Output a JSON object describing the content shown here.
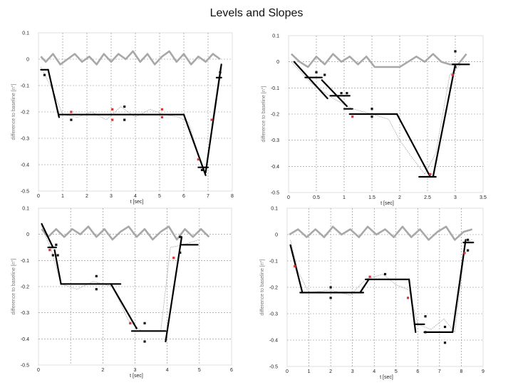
{
  "title": "Levels and Slopes",
  "colors": {
    "baseline": "#a8a8a8",
    "fit": "#000000",
    "signal": "#9a9a9a",
    "marker_red": "#d23a3a",
    "marker_black": "#111111",
    "grid": "#888888"
  },
  "chart_data": [
    {
      "type": "line",
      "title": "",
      "xlabel": "t [sec]",
      "ylabel": "difference to baseline [n°]",
      "xlim": [
        0,
        8
      ],
      "ylim": [
        -0.5,
        0.1
      ],
      "xticks": [
        "0",
        "1",
        "2",
        "3",
        "4",
        "5",
        "6",
        "7",
        "8"
      ],
      "yticks": [
        "0.1",
        "0",
        "-0.1",
        "-0.2",
        "-0.3",
        "-0.4",
        "-0.5"
      ],
      "baseline": [
        [
          0.1,
          0.01
        ],
        [
          0.3,
          -0.01
        ],
        [
          0.6,
          0.02
        ],
        [
          0.9,
          -0.02
        ],
        [
          1.2,
          0.0
        ],
        [
          1.5,
          0.02
        ],
        [
          1.8,
          -0.01
        ],
        [
          2.1,
          0.01
        ],
        [
          2.4,
          -0.02
        ],
        [
          2.7,
          0.02
        ],
        [
          3.0,
          -0.01
        ],
        [
          3.3,
          0.02
        ],
        [
          3.6,
          0.0
        ],
        [
          3.9,
          0.03
        ],
        [
          4.2,
          -0.01
        ],
        [
          4.5,
          0.02
        ],
        [
          4.8,
          -0.02
        ],
        [
          5.1,
          0.01
        ],
        [
          5.4,
          0.03
        ],
        [
          5.7,
          -0.01
        ],
        [
          6.0,
          0.02
        ],
        [
          6.3,
          -0.02
        ],
        [
          6.6,
          0.01
        ],
        [
          6.9,
          -0.01
        ],
        [
          7.2,
          0.02
        ],
        [
          7.5,
          0.0
        ]
      ],
      "fit": [
        [
          [
            0.1,
            -0.04
          ],
          [
            0.4,
            -0.04
          ]
        ],
        [
          [
            0.4,
            -0.04
          ],
          [
            0.85,
            -0.22
          ]
        ],
        [
          [
            0.85,
            -0.21
          ],
          [
            6.0,
            -0.21
          ]
        ],
        [
          [
            6.0,
            -0.21
          ],
          [
            6.9,
            -0.44
          ]
        ],
        [
          [
            6.6,
            -0.41
          ],
          [
            7.0,
            -0.41
          ]
        ],
        [
          [
            6.9,
            -0.43
          ],
          [
            7.55,
            -0.02
          ]
        ],
        [
          [
            7.35,
            -0.07
          ],
          [
            7.55,
            -0.07
          ]
        ]
      ],
      "signal": [
        [
          0.1,
          -0.03
        ],
        [
          0.6,
          -0.12
        ],
        [
          1.0,
          -0.21
        ],
        [
          1.6,
          -0.22
        ],
        [
          2.2,
          -0.2
        ],
        [
          2.8,
          -0.23
        ],
        [
          3.4,
          -0.18
        ],
        [
          4.0,
          -0.22
        ],
        [
          4.6,
          -0.19
        ],
        [
          5.2,
          -0.21
        ],
        [
          5.8,
          -0.22
        ],
        [
          6.2,
          -0.24
        ],
        [
          6.6,
          -0.36
        ],
        [
          6.9,
          -0.43
        ],
        [
          7.2,
          -0.22
        ],
        [
          7.5,
          -0.03
        ]
      ],
      "markers_red": [
        [
          1.35,
          -0.2
        ],
        [
          3.05,
          -0.19
        ],
        [
          3.05,
          -0.23
        ],
        [
          5.1,
          -0.19
        ],
        [
          5.1,
          -0.22
        ],
        [
          7.15,
          -0.23
        ],
        [
          6.6,
          -0.38
        ]
      ],
      "markers_black": [
        [
          0.25,
          -0.06
        ],
        [
          1.35,
          -0.23
        ],
        [
          3.55,
          -0.18
        ],
        [
          3.55,
          -0.23
        ],
        [
          7.5,
          -0.05
        ],
        [
          6.75,
          -0.42
        ]
      ]
    },
    {
      "type": "line",
      "title": "",
      "xlabel": "t [sec]",
      "ylabel": "difference to baseline [n°]",
      "xlim": [
        0,
        3.5
      ],
      "ylim": [
        -0.5,
        0.1
      ],
      "xticks": [
        "0",
        "0.5",
        "1",
        "1.5",
        "2",
        "2.5",
        "3",
        "3.5"
      ],
      "yticks": [
        "0.1",
        "0",
        "-0.1",
        "-0.2",
        "-0.3",
        "-0.4",
        "-0.5"
      ],
      "baseline": [
        [
          0.05,
          0.03
        ],
        [
          0.2,
          0.0
        ],
        [
          0.35,
          -0.02
        ],
        [
          0.5,
          0.02
        ],
        [
          0.65,
          -0.01
        ],
        [
          0.8,
          0.03
        ],
        [
          0.95,
          0.0
        ],
        [
          1.1,
          0.02
        ],
        [
          1.25,
          -0.01
        ],
        [
          1.4,
          0.02
        ],
        [
          1.55,
          -0.02
        ],
        [
          1.7,
          -0.02
        ],
        [
          1.85,
          -0.02
        ],
        [
          2.0,
          -0.02
        ],
        [
          2.15,
          0.0
        ],
        [
          2.3,
          0.02
        ],
        [
          2.45,
          0.0
        ],
        [
          2.6,
          0.03
        ],
        [
          2.75,
          0.0
        ],
        [
          2.9,
          -0.01
        ],
        [
          3.05,
          -0.01
        ],
        [
          3.2,
          0.03
        ]
      ],
      "fit": [
        [
          [
            0.1,
            0.0
          ],
          [
            0.7,
            -0.14
          ]
        ],
        [
          [
            0.3,
            -0.06
          ],
          [
            0.6,
            -0.06
          ]
        ],
        [
          [
            0.6,
            -0.07
          ],
          [
            1.05,
            -0.17
          ]
        ],
        [
          [
            0.75,
            -0.13
          ],
          [
            1.1,
            -0.13
          ]
        ],
        [
          [
            1.0,
            -0.18
          ],
          [
            1.15,
            -0.18
          ]
        ],
        [
          [
            1.1,
            -0.2
          ],
          [
            1.95,
            -0.2
          ]
        ],
        [
          [
            1.95,
            -0.2
          ],
          [
            2.55,
            -0.44
          ]
        ],
        [
          [
            2.35,
            -0.44
          ],
          [
            2.65,
            -0.44
          ]
        ],
        [
          [
            2.6,
            -0.44
          ],
          [
            3.0,
            -0.01
          ]
        ],
        [
          [
            2.95,
            -0.01
          ],
          [
            3.25,
            -0.01
          ]
        ]
      ],
      "signal": [
        [
          0.05,
          0.0
        ],
        [
          0.4,
          -0.08
        ],
        [
          0.8,
          -0.14
        ],
        [
          1.15,
          -0.18
        ],
        [
          1.5,
          -0.2
        ],
        [
          1.8,
          -0.22
        ],
        [
          2.0,
          -0.3
        ],
        [
          2.2,
          -0.36
        ],
        [
          2.45,
          -0.43
        ],
        [
          2.65,
          -0.35
        ],
        [
          2.9,
          -0.05
        ],
        [
          3.1,
          -0.01
        ]
      ],
      "markers_red": [
        [
          1.15,
          -0.21
        ],
        [
          2.55,
          -0.43
        ],
        [
          2.95,
          -0.05
        ]
      ],
      "markers_black": [
        [
          0.5,
          -0.04
        ],
        [
          0.65,
          -0.05
        ],
        [
          0.95,
          -0.12
        ],
        [
          1.05,
          -0.12
        ],
        [
          1.5,
          -0.18
        ],
        [
          1.5,
          -0.21
        ],
        [
          3.0,
          0.04
        ],
        [
          3.0,
          -0.02
        ]
      ]
    },
    {
      "type": "line",
      "title": "",
      "xlabel": "t [sec]",
      "ylabel": "difference to baseline [n°]",
      "xlim": [
        0,
        6
      ],
      "ylim": [
        -0.5,
        0.1
      ],
      "xticks": [
        "0",
        "",
        "2",
        "3",
        "4",
        "5",
        "6"
      ],
      "yticks": [
        "0.1",
        "0",
        "-0.1",
        "-0.2",
        "-0.3",
        "-0.4",
        "-0.5"
      ],
      "baseline": [
        [
          0.1,
          0.02
        ],
        [
          0.3,
          -0.01
        ],
        [
          0.55,
          0.02
        ],
        [
          0.8,
          -0.01
        ],
        [
          1.05,
          0.02
        ],
        [
          1.3,
          0.0
        ],
        [
          1.55,
          0.03
        ],
        [
          1.8,
          -0.01
        ],
        [
          2.05,
          0.02
        ],
        [
          2.3,
          -0.02
        ],
        [
          2.55,
          0.01
        ],
        [
          2.8,
          0.03
        ],
        [
          3.05,
          -0.01
        ],
        [
          3.3,
          0.02
        ],
        [
          3.55,
          -0.02
        ],
        [
          3.8,
          0.01
        ],
        [
          4.05,
          0.03
        ],
        [
          4.3,
          -0.02
        ],
        [
          4.55,
          0.02
        ],
        [
          4.8,
          -0.01
        ],
        [
          5.05,
          0.02
        ],
        [
          5.3,
          -0.01
        ]
      ],
      "fit": [
        [
          [
            0.1,
            0.04
          ],
          [
            0.45,
            -0.05
          ]
        ],
        [
          [
            0.3,
            -0.05
          ],
          [
            0.55,
            -0.05
          ]
        ],
        [
          [
            0.5,
            -0.06
          ],
          [
            0.7,
            -0.19
          ]
        ],
        [
          [
            0.7,
            -0.19
          ],
          [
            2.55,
            -0.19
          ]
        ],
        [
          [
            2.25,
            -0.19
          ],
          [
            3.05,
            -0.36
          ]
        ],
        [
          [
            2.9,
            -0.37
          ],
          [
            3.95,
            -0.37
          ]
        ],
        [
          [
            3.95,
            -0.41
          ],
          [
            4.45,
            -0.01
          ]
        ],
        [
          [
            4.45,
            -0.04
          ],
          [
            4.95,
            -0.04
          ]
        ]
      ],
      "signal": [
        [
          0.1,
          0.03
        ],
        [
          0.4,
          -0.06
        ],
        [
          0.7,
          -0.19
        ],
        [
          1.2,
          -0.21
        ],
        [
          1.7,
          -0.18
        ],
        [
          2.3,
          -0.2
        ],
        [
          2.8,
          -0.33
        ],
        [
          3.2,
          -0.37
        ],
        [
          3.8,
          -0.37
        ],
        [
          4.1,
          -0.05
        ],
        [
          4.5,
          -0.04
        ],
        [
          5.0,
          -0.02
        ]
      ],
      "markers_red": [
        [
          0.35,
          -0.06
        ],
        [
          2.85,
          -0.34
        ],
        [
          4.2,
          -0.09
        ]
      ],
      "markers_black": [
        [
          0.45,
          -0.08
        ],
        [
          0.6,
          -0.08
        ],
        [
          0.55,
          -0.04
        ],
        [
          1.8,
          -0.16
        ],
        [
          1.8,
          -0.21
        ],
        [
          3.3,
          -0.34
        ],
        [
          3.3,
          -0.41
        ],
        [
          4.4,
          -0.01
        ],
        [
          4.4,
          -0.07
        ]
      ]
    },
    {
      "type": "line",
      "title": "",
      "xlabel": "t [sec]",
      "ylabel": "difference to baseline [n°]",
      "xlim": [
        0,
        9
      ],
      "ylim": [
        -0.5,
        0.1
      ],
      "xticks": [
        "0",
        "1",
        "2",
        "3",
        "4",
        "5",
        "6",
        "7",
        "8",
        "9"
      ],
      "yticks": [
        "0.1",
        "0",
        "-0.1",
        "-0.2",
        "-0.3",
        "-0.4",
        "-0.5"
      ],
      "baseline": [
        [
          0.1,
          0.0
        ],
        [
          0.5,
          0.02
        ],
        [
          0.9,
          -0.01
        ],
        [
          1.3,
          0.02
        ],
        [
          1.7,
          -0.01
        ],
        [
          2.1,
          0.03
        ],
        [
          2.5,
          0.0
        ],
        [
          2.9,
          0.02
        ],
        [
          3.3,
          -0.01
        ],
        [
          3.7,
          0.03
        ],
        [
          4.1,
          0.0
        ],
        [
          4.5,
          0.02
        ],
        [
          4.9,
          -0.01
        ],
        [
          5.3,
          0.03
        ],
        [
          5.7,
          -0.01
        ],
        [
          6.1,
          0.02
        ],
        [
          6.5,
          -0.02
        ],
        [
          6.9,
          0.01
        ],
        [
          7.3,
          0.03
        ],
        [
          7.7,
          -0.02
        ],
        [
          8.1,
          0.01
        ],
        [
          8.5,
          0.02
        ]
      ],
      "fit": [
        [
          [
            0.15,
            -0.04
          ],
          [
            0.7,
            -0.22
          ]
        ],
        [
          [
            0.6,
            -0.22
          ],
          [
            3.5,
            -0.22
          ]
        ],
        [
          [
            3.35,
            -0.22
          ],
          [
            3.75,
            -0.17
          ]
        ],
        [
          [
            3.6,
            -0.17
          ],
          [
            5.6,
            -0.17
          ]
        ],
        [
          [
            5.6,
            -0.17
          ],
          [
            5.9,
            -0.37
          ]
        ],
        [
          [
            5.85,
            -0.34
          ],
          [
            6.3,
            -0.34
          ]
        ],
        [
          [
            6.3,
            -0.37
          ],
          [
            7.6,
            -0.37
          ]
        ],
        [
          [
            7.6,
            -0.37
          ],
          [
            8.2,
            -0.02
          ]
        ],
        [
          [
            8.1,
            -0.03
          ],
          [
            8.55,
            -0.03
          ]
        ]
      ],
      "signal": [
        [
          0.15,
          -0.02
        ],
        [
          0.5,
          -0.14
        ],
        [
          1.0,
          -0.22
        ],
        [
          2.0,
          -0.21
        ],
        [
          2.9,
          -0.23
        ],
        [
          3.6,
          -0.17
        ],
        [
          4.4,
          -0.15
        ],
        [
          5.0,
          -0.19
        ],
        [
          5.6,
          -0.21
        ],
        [
          6.0,
          -0.34
        ],
        [
          6.6,
          -0.36
        ],
        [
          7.2,
          -0.32
        ],
        [
          7.7,
          -0.37
        ],
        [
          8.2,
          -0.03
        ],
        [
          8.5,
          -0.02
        ]
      ],
      "markers_red": [
        [
          3.8,
          -0.16
        ],
        [
          5.55,
          -0.24
        ],
        [
          8.15,
          -0.07
        ],
        [
          0.35,
          -0.12
        ]
      ],
      "markers_black": [
        [
          2.0,
          -0.2
        ],
        [
          2.0,
          -0.24
        ],
        [
          4.5,
          -0.15
        ],
        [
          6.35,
          -0.31
        ],
        [
          6.35,
          -0.37
        ],
        [
          7.25,
          -0.35
        ],
        [
          7.25,
          -0.41
        ],
        [
          8.3,
          -0.02
        ],
        [
          8.3,
          -0.06
        ]
      ]
    }
  ]
}
